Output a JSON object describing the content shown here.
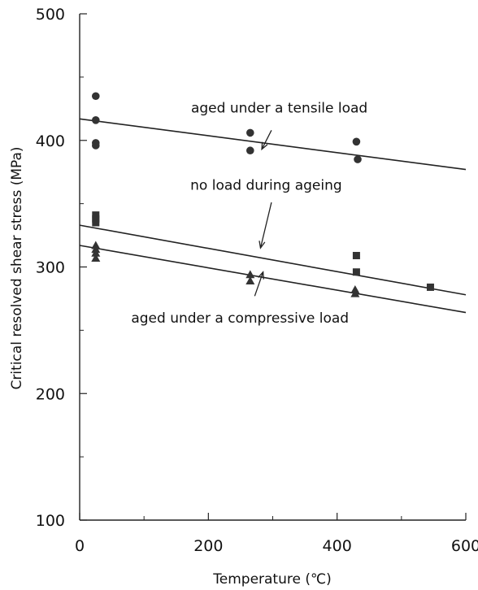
{
  "chart_data": {
    "type": "scatter",
    "title": "",
    "xlabel": "Temperature (℃)",
    "ylabel": "Critical resolved shear stress (MPa)",
    "xlim": [
      0,
      600
    ],
    "ylim": [
      100,
      500
    ],
    "x_ticks": [
      0,
      200,
      400,
      600
    ],
    "y_ticks": [
      100,
      200,
      300,
      400,
      500
    ],
    "grid": false,
    "series": [
      {
        "marker": "circle",
        "color": "#333333",
        "points": [
          [
            25,
            435
          ],
          [
            25,
            416
          ],
          [
            25,
            398
          ],
          [
            25,
            396
          ],
          [
            265,
            406
          ],
          [
            265,
            392
          ],
          [
            430,
            399
          ],
          [
            432,
            385
          ]
        ],
        "fit_line": [
          [
            0,
            417
          ],
          [
            600,
            377
          ]
        ]
      },
      {
        "marker": "square",
        "color": "#333333",
        "points": [
          [
            25,
            341
          ],
          [
            25,
            338
          ],
          [
            25,
            335
          ],
          [
            430,
            309
          ],
          [
            430,
            296
          ],
          [
            545,
            284
          ]
        ],
        "fit_line": [
          [
            0,
            333
          ],
          [
            600,
            278
          ]
        ]
      },
      {
        "marker": "triangle",
        "color": "#333333",
        "points": [
          [
            25,
            317
          ],
          [
            25,
            314
          ],
          [
            25,
            311
          ],
          [
            25,
            307
          ],
          [
            265,
            294
          ],
          [
            265,
            289
          ],
          [
            428,
            282
          ],
          [
            428,
            279
          ]
        ],
        "fit_line": [
          [
            0,
            317
          ],
          [
            600,
            264
          ]
        ]
      }
    ],
    "annotations": [
      {
        "text": "aged under a  tensile load",
        "text_at": [
          173,
          422
        ],
        "arrow_from": [
          298,
          408
        ],
        "arrow_to": [
          283,
          393
        ]
      },
      {
        "text": "no load during ageing",
        "text_at": [
          172,
          361
        ],
        "arrow_from": [
          298,
          351
        ],
        "arrow_to": [
          281,
          315
        ]
      },
      {
        "text": "aged under a compressive load",
        "text_at": [
          80,
          256
        ],
        "arrow_from": [
          272,
          277
        ],
        "arrow_to": [
          285,
          296
        ]
      }
    ]
  }
}
